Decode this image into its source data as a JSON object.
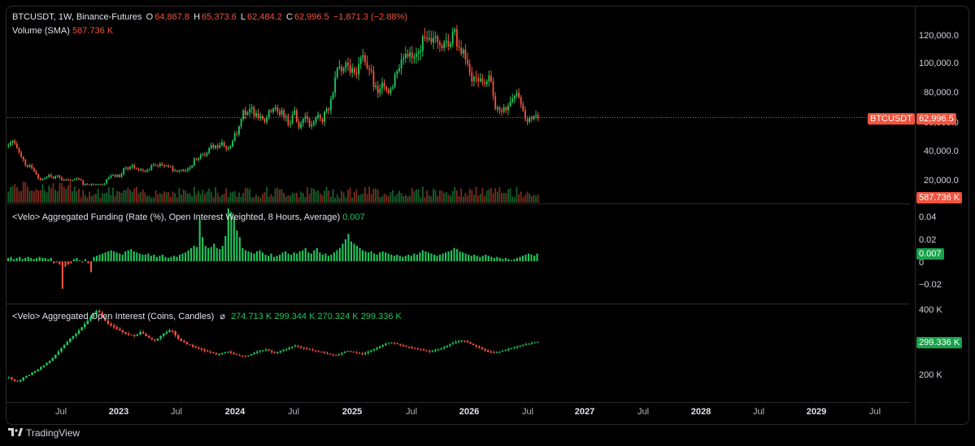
{
  "header": {
    "symbol": "BTCUSDT, 1W, Binance-Futures",
    "o_label": "O",
    "o": "64,867.8",
    "h_label": "H",
    "h": "65,373.6",
    "l_label": "L",
    "l": "62,484.2",
    "c_label": "C",
    "c": "62,996.5",
    "change": "−1,871.3 (−2.88%)"
  },
  "volume_label": {
    "name": "Volume (SMA)",
    "value": "587.736 K"
  },
  "funding_label": {
    "name": "<Velo> Aggregated Funding (Rate (%), Open Interest Weighted, 8 Hours, Average)",
    "value": "0.007"
  },
  "oi_label": {
    "name": "<Velo> Aggregated Open Interest (Coins, Candles)",
    "icon": "hidden-eye-icon",
    "symbol": "⌀",
    "o": "274.713 K",
    "h": "299.344 K",
    "l": "270.324 K",
    "c": "299.336 K"
  },
  "price_axis": [
    "120,000.0",
    "100,000.0",
    "80,000.0",
    "60,000.0",
    "40,000.0",
    "20,000.0"
  ],
  "funding_axis": [
    "0.04",
    "0.02",
    "0",
    "−0.02"
  ],
  "oi_axis": [
    "400 K",
    "200 K"
  ],
  "tags": {
    "symbol_tag": "BTCUSDT",
    "price_tag": "62,996.5",
    "volume_tag": "587.736 K",
    "funding_tag": "0.007",
    "oi_tag": "299.336 K"
  },
  "time_axis": [
    "Jul",
    "2023",
    "Jul",
    "2024",
    "Jul",
    "2025",
    "Jul",
    "2026",
    "Jul",
    "2027",
    "Jul",
    "2028",
    "Jul",
    "2029",
    "Jul"
  ],
  "time_axis_year_flags": [
    false,
    true,
    false,
    true,
    false,
    true,
    false,
    true,
    false,
    true,
    false,
    true,
    false,
    true,
    false
  ],
  "footer": {
    "brand": "TradingView",
    "icon": "tradingview-logo-icon"
  },
  "colors": {
    "up": "#22c55e",
    "down": "#f0533c",
    "background": "#000000",
    "grid": "#2a2a2a"
  },
  "chart_data": [
    {
      "type": "candlestick",
      "title": "BTCUSDT, 1W, Binance-Futures",
      "ylim": [
        10000,
        128000
      ],
      "y_ticks": [
        20000,
        40000,
        60000,
        80000,
        100000,
        120000
      ],
      "x_start": "2022-04",
      "x_end": "2026-07",
      "weekly_closes": [
        44000,
        46000,
        47000,
        45000,
        42000,
        39000,
        36000,
        34000,
        30000,
        29000,
        30000,
        28000,
        26000,
        24000,
        21000,
        20000,
        20500,
        21000,
        22000,
        23500,
        22000,
        21000,
        22500,
        23000,
        21500,
        20000,
        19800,
        20500,
        19800,
        19500,
        20000,
        20500,
        21000,
        20200,
        19800,
        16500,
        17000,
        16800,
        16500,
        17000,
        16800,
        16900,
        17000,
        16600,
        16800,
        17500,
        20500,
        21500,
        23000,
        23500,
        22000,
        23500,
        22000,
        24000,
        28000,
        28500,
        27500,
        29000,
        30000,
        28000,
        27500,
        26800,
        27200,
        26500,
        25800,
        26500,
        27000,
        30000,
        30500,
        30000,
        29500,
        31000,
        30000,
        29500,
        30000,
        29200,
        29000,
        26000,
        26500,
        25800,
        26500,
        27000,
        26000,
        26500,
        27500,
        28500,
        30000,
        34500,
        34000,
        35000,
        37000,
        37500,
        37000,
        38500,
        42000,
        44000,
        42000,
        43500,
        42500,
        44000,
        46000,
        43000,
        41500,
        42000,
        43000,
        47000,
        52000,
        51500,
        57000,
        62000,
        68000,
        65000,
        66500,
        69000,
        70000,
        64000,
        66000,
        63000,
        64000,
        62000,
        60000,
        63000,
        68000,
        67000,
        69000,
        70000,
        67000,
        65000,
        68000,
        63000,
        64000,
        58000,
        59000,
        65000,
        68000,
        60000,
        56000,
        59000,
        62000,
        64000,
        62000,
        57000,
        58000,
        60000,
        63000,
        65000,
        62000,
        60000,
        67000,
        69000,
        68000,
        76000,
        80000,
        91000,
        97000,
        98000,
        95000,
        97000,
        101000,
        99000,
        94000,
        97000,
        94000,
        93000,
        100000,
        104000,
        106000,
        101000,
        97000,
        96000,
        95000,
        84000,
        85000,
        80000,
        83000,
        87000,
        84000,
        82000,
        80000,
        83000,
        84000,
        93000,
        95000,
        97000,
        103000,
        104000,
        107000,
        105000,
        108000,
        104000,
        105000,
        107000,
        108000,
        109000,
        119000,
        118000,
        117000,
        118000,
        115000,
        118000,
        119000,
        115000,
        113000,
        111000,
        115000,
        116000,
        112000,
        114000,
        122000,
        124000,
        112000,
        111000,
        107000,
        110000,
        103000,
        100000,
        94000,
        88000,
        91000,
        90000,
        88000,
        90000,
        87000,
        86000,
        88000,
        92000,
        88000,
        78000,
        69000,
        70000,
        68000,
        67000,
        70000,
        68000,
        71000,
        74000,
        76000,
        78000,
        80000,
        77000,
        72000,
        68000,
        62000,
        60000,
        63000,
        62000,
        64000,
        64868,
        62997
      ],
      "volume_sma_last": 587736
    },
    {
      "type": "bar",
      "title": "<Velo> Aggregated Funding (Rate (%), Open Interest Weighted, 8 Hours, Average)",
      "ylim": [
        -0.03,
        0.045
      ],
      "y_ticks": [
        -0.02,
        0,
        0.02,
        0.04
      ],
      "values": [
        0.003,
        0.004,
        0.002,
        0.003,
        0.004,
        0.002,
        0.003,
        0.004,
        0.003,
        0.002,
        0.003,
        0.004,
        0.003,
        0.003,
        0.002,
        0.003,
        -0.002,
        -0.001,
        -0.003,
        -0.025,
        -0.005,
        -0.003,
        -0.002,
        0.002,
        0.003,
        0.001,
        -0.001,
        0.002,
        -0.002,
        -0.01,
        0.004,
        0.005,
        0.006,
        0.007,
        0.008,
        0.009,
        0.01,
        0.009,
        0.008,
        0.007,
        0.006,
        0.009,
        0.01,
        0.011,
        0.009,
        0.008,
        0.007,
        0.006,
        0.006,
        0.007,
        0.005,
        0.006,
        0.004,
        0.005,
        0.006,
        0.004,
        0.003,
        0.004,
        0.005,
        0.004,
        0.006,
        0.007,
        0.008,
        0.01,
        0.012,
        0.014,
        0.013,
        0.038,
        0.022,
        0.014,
        0.012,
        0.013,
        0.016,
        0.012,
        0.011,
        0.014,
        0.023,
        0.048,
        0.045,
        0.04,
        0.028,
        0.022,
        0.012,
        0.01,
        0.009,
        0.008,
        0.007,
        0.009,
        0.01,
        0.008,
        0.006,
        0.005,
        0.007,
        0.004,
        0.005,
        0.006,
        0.008,
        0.009,
        0.007,
        0.006,
        0.008,
        0.007,
        0.009,
        0.01,
        0.012,
        0.008,
        0.007,
        0.01,
        0.012,
        0.008,
        0.006,
        0.007,
        0.005,
        0.006,
        0.008,
        0.01,
        0.012,
        0.016,
        0.02,
        0.025,
        0.018,
        0.016,
        0.014,
        0.012,
        0.01,
        0.009,
        0.008,
        0.009,
        0.007,
        0.006,
        0.008,
        0.009,
        0.008,
        0.007,
        0.006,
        0.005,
        0.006,
        0.005,
        0.004,
        0.005,
        0.006,
        0.005,
        0.007,
        0.006,
        0.008,
        0.01,
        0.009,
        0.008,
        0.007,
        0.006,
        0.005,
        0.006,
        0.007,
        0.008,
        0.009,
        0.01,
        0.012,
        0.011,
        0.009,
        0.008,
        0.007,
        0.006,
        0.005,
        0.006,
        0.005,
        0.004,
        0.005,
        0.006,
        0.005,
        0.004,
        0.003,
        0.004,
        0.003,
        0.002,
        0.003,
        0.002,
        0.001,
        0.002,
        0.003,
        0.004,
        0.005,
        0.006,
        0.007,
        0.006,
        0.005,
        0.007
      ]
    },
    {
      "type": "candlestick",
      "title": "<Velo> Aggregated Open Interest (Coins, Candles)",
      "ylim": [
        120000,
        420000
      ],
      "y_ticks": [
        200000,
        400000
      ],
      "weekly_closes": [
        190000,
        185000,
        180000,
        178000,
        182000,
        190000,
        195000,
        198000,
        205000,
        210000,
        215000,
        222000,
        228000,
        235000,
        242000,
        250000,
        260000,
        270000,
        280000,
        290000,
        300000,
        310000,
        318000,
        325000,
        335000,
        345000,
        355000,
        365000,
        375000,
        385000,
        395000,
        390000,
        375000,
        365000,
        355000,
        350000,
        345000,
        340000,
        335000,
        330000,
        325000,
        322000,
        320000,
        318000,
        322000,
        330000,
        325000,
        318000,
        312000,
        308000,
        305000,
        310000,
        318000,
        325000,
        330000,
        335000,
        332000,
        320000,
        310000,
        302000,
        298000,
        292000,
        290000,
        285000,
        282000,
        280000,
        276000,
        272000,
        270000,
        268000,
        265000,
        262000,
        262000,
        265000,
        268000,
        270000,
        266000,
        262000,
        260000,
        258000,
        257000,
        256000,
        258000,
        262000,
        266000,
        270000,
        272000,
        274000,
        276000,
        272000,
        268000,
        265000,
        268000,
        272000,
        275000,
        278000,
        282000,
        285000,
        288000,
        286000,
        283000,
        280000,
        278000,
        276000,
        274000,
        272000,
        270000,
        268000,
        266000,
        264000,
        262000,
        260000,
        258000,
        262000,
        266000,
        270000,
        272000,
        270000,
        268000,
        266000,
        264000,
        262000,
        266000,
        270000,
        274000,
        278000,
        282000,
        286000,
        290000,
        294000,
        296000,
        298000,
        296000,
        293000,
        290000,
        287000,
        285000,
        283000,
        282000,
        280000,
        278000,
        276000,
        274000,
        272000,
        270000,
        272000,
        275000,
        278000,
        280000,
        284000,
        288000,
        292000,
        296000,
        300000,
        302000,
        304000,
        302000,
        298000,
        294000,
        290000,
        286000,
        282000,
        278000,
        274000,
        270000,
        268000,
        266000,
        268000,
        270000,
        272000,
        275000,
        278000,
        280000,
        282000,
        285000,
        288000,
        290000,
        292000,
        294000,
        296000,
        298000,
        299336
      ]
    }
  ]
}
